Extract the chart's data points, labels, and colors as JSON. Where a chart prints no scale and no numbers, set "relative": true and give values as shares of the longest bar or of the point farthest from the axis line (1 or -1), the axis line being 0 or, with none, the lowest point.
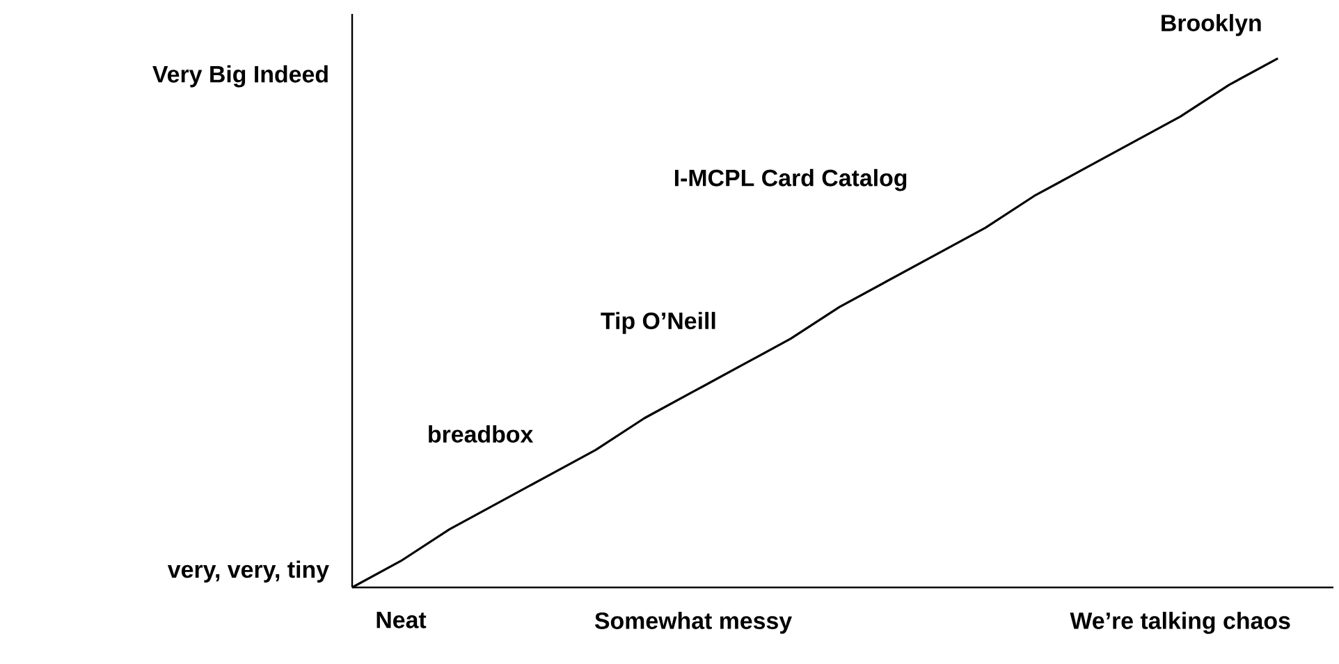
{
  "chart_data": {
    "type": "line",
    "relative": true,
    "color": "#000000",
    "line_style": "solid",
    "categories": [
      null,
      "Neat",
      null,
      null,
      null,
      null,
      null,
      "Somewhat messy",
      null,
      null,
      null,
      null,
      null,
      null,
      null,
      null,
      null,
      "We’re talking chaos",
      null,
      null
    ],
    "values": [
      0,
      0.05,
      0.11,
      0.16,
      0.21,
      0.26,
      0.32,
      0.37,
      0.42,
      0.47,
      0.53,
      0.58,
      0.63,
      0.68,
      0.74,
      0.79,
      0.84,
      0.89,
      0.95,
      1
    ],
    "annotations": [
      "Very Big Indeed",
      "very, very, tiny",
      "breadbox",
      "Tip O’Neill",
      "I-MCPL Card Catalog",
      "Brooklyn"
    ]
  }
}
